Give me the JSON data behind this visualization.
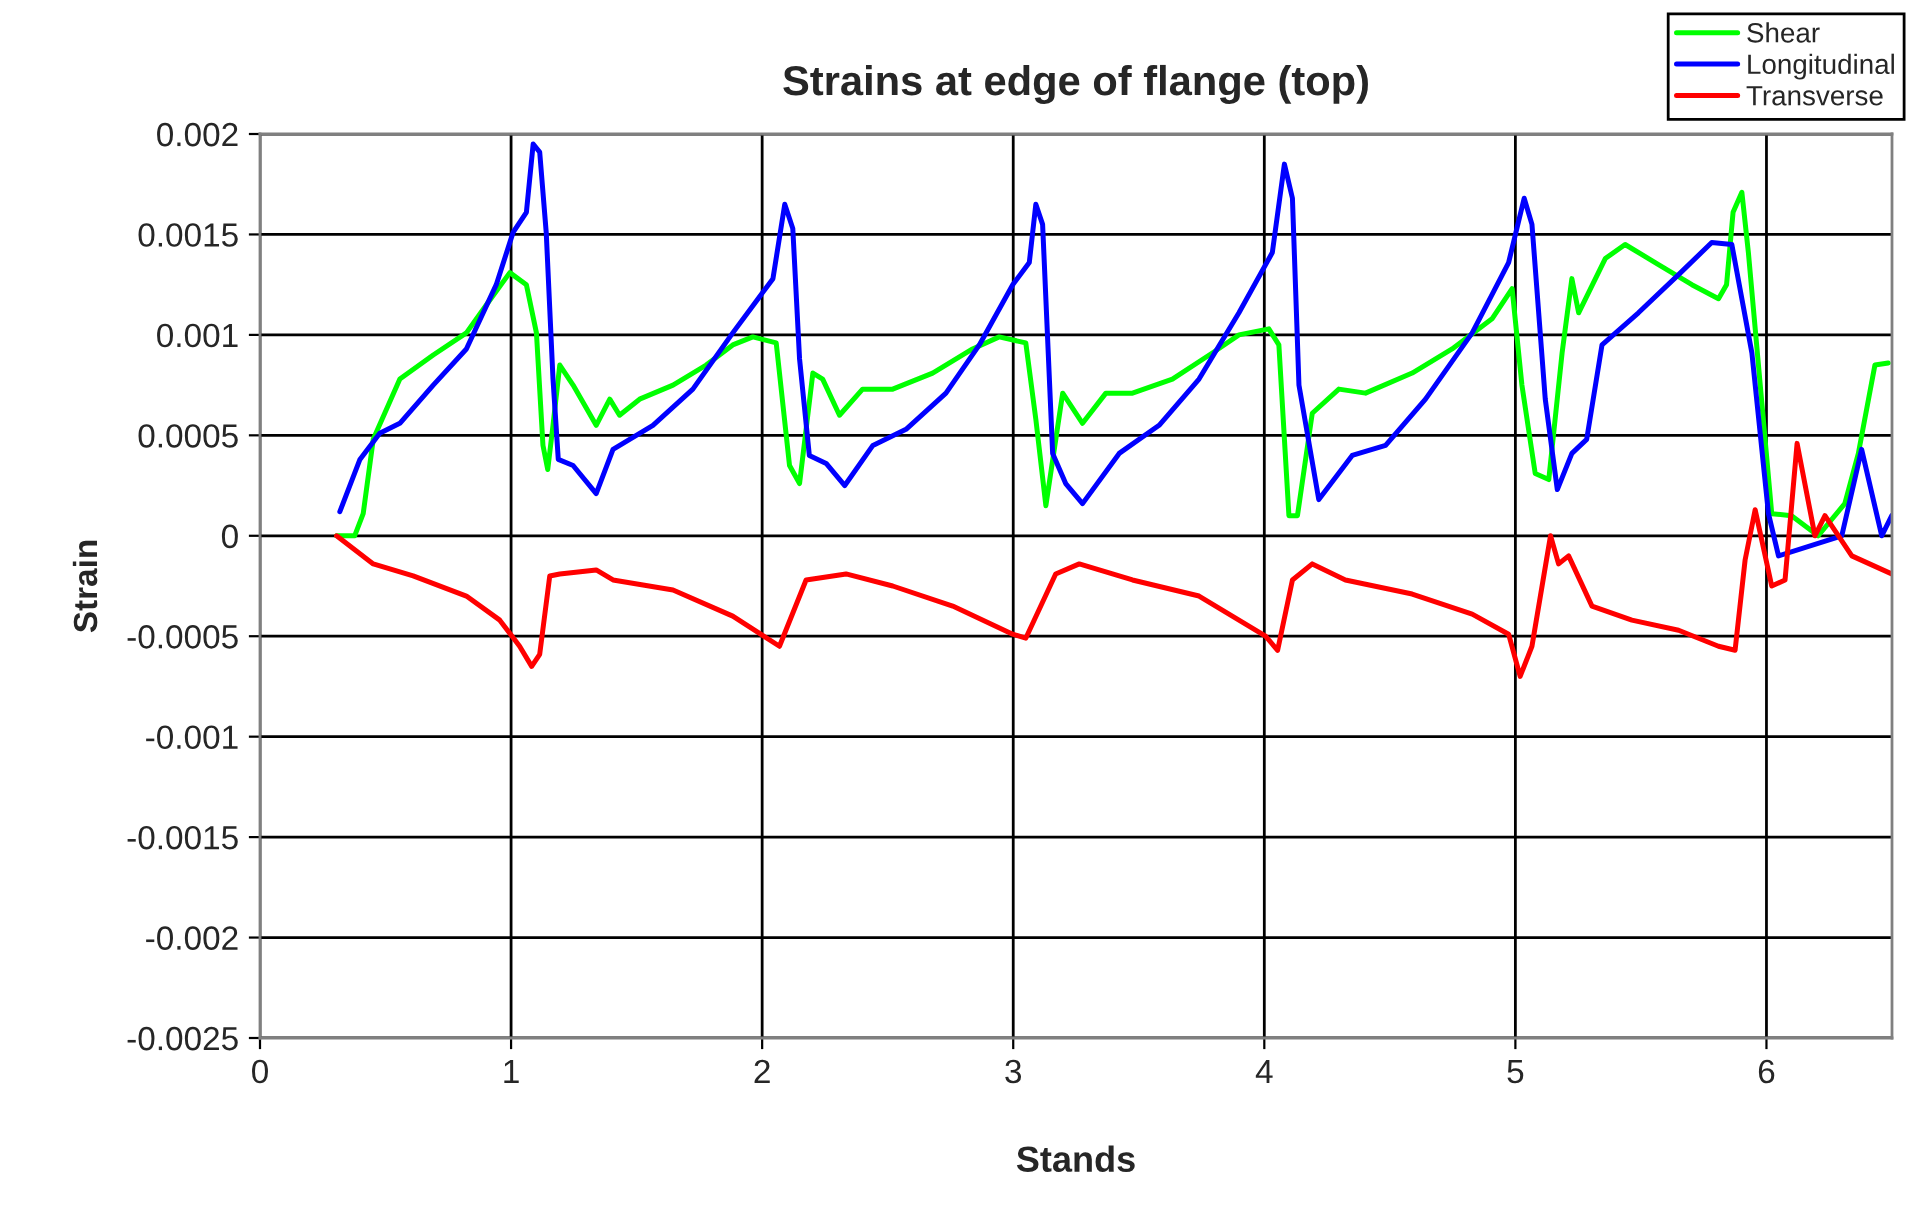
{
  "chart_data": {
    "type": "line",
    "title": "Strains at edge of flange (top)",
    "xlabel": "Stands",
    "ylabel": "Strain",
    "xlim": [
      0,
      6.5
    ],
    "xticks": [
      0,
      1,
      2,
      3,
      4,
      5,
      6
    ],
    "ylim": [
      -0.0025,
      0.002
    ],
    "yticks": [
      -0.0025,
      -0.002,
      -0.0015,
      -0.001,
      -0.0005,
      0,
      0.0005,
      0.001,
      0.0015,
      0.002
    ],
    "grid": true,
    "legend": "top right",
    "marker": "none",
    "line_style": "solid",
    "series": [
      {
        "name": "Shear",
        "color": "#00ff00",
        "x": [
          0.305,
          0.377,
          0.411,
          0.451,
          0.557,
          0.69,
          0.822,
          0.902,
          0.995,
          1.061,
          1.101,
          1.127,
          1.146,
          1.167,
          1.194,
          1.247,
          1.339,
          1.393,
          1.432,
          1.512,
          1.645,
          1.777,
          1.883,
          1.963,
          2.056,
          2.109,
          2.149,
          2.202,
          2.241,
          2.308,
          2.4,
          2.52,
          2.679,
          2.838,
          2.944,
          3.05,
          3.09,
          3.13,
          3.197,
          3.276,
          3.369,
          3.475,
          3.634,
          3.793,
          3.899,
          4.018,
          4.058,
          4.098,
          4.132,
          4.191,
          4.297,
          4.403,
          4.589,
          4.748,
          4.907,
          4.987,
          5.026,
          5.079,
          5.133,
          5.186,
          5.225,
          5.252,
          5.358,
          5.437,
          5.57,
          5.703,
          5.809,
          5.841,
          5.867,
          5.902,
          5.928,
          6.021,
          6.1,
          6.206,
          6.312,
          6.366,
          6.432,
          6.485
        ],
        "values": [
          0.0,
          0.0,
          0.00011,
          0.00048,
          0.00078,
          0.0009,
          0.00101,
          0.00115,
          0.00131,
          0.00125,
          0.00101,
          0.00045,
          0.00033,
          0.00055,
          0.00085,
          0.00075,
          0.00055,
          0.00068,
          0.0006,
          0.00068,
          0.00075,
          0.00085,
          0.00095,
          0.00099,
          0.00096,
          0.00035,
          0.00026,
          0.00081,
          0.00078,
          0.0006,
          0.00073,
          0.00073,
          0.00081,
          0.00093,
          0.00099,
          0.00096,
          0.00058,
          0.00015,
          0.00071,
          0.00056,
          0.00071,
          0.00071,
          0.00078,
          0.00091,
          0.001,
          0.00103,
          0.00095,
          0.0001,
          0.0001,
          0.00061,
          0.00073,
          0.00071,
          0.00081,
          0.00093,
          0.00108,
          0.00123,
          0.00075,
          0.00031,
          0.00028,
          0.00091,
          0.00128,
          0.00111,
          0.00138,
          0.00145,
          0.00135,
          0.00125,
          0.00118,
          0.00125,
          0.00161,
          0.00171,
          0.00141,
          0.00011,
          0.0001,
          0.0,
          0.00016,
          0.00041,
          0.00085,
          0.00086
        ]
      },
      {
        "name": "Longitudinal",
        "color": "#0000ff",
        "x": [
          0.318,
          0.398,
          0.477,
          0.557,
          0.69,
          0.822,
          0.941,
          1.008,
          1.061,
          1.088,
          1.114,
          1.14,
          1.167,
          1.188,
          1.247,
          1.339,
          1.406,
          1.565,
          1.724,
          1.883,
          2.043,
          2.09,
          2.122,
          2.149,
          2.188,
          2.255,
          2.329,
          2.441,
          2.573,
          2.732,
          2.865,
          2.998,
          3.064,
          3.09,
          3.117,
          3.157,
          3.209,
          3.276,
          3.422,
          3.581,
          3.74,
          3.899,
          4.032,
          4.08,
          4.112,
          4.138,
          4.217,
          4.35,
          4.483,
          4.642,
          4.828,
          4.973,
          5.035,
          5.066,
          5.119,
          5.167,
          5.225,
          5.284,
          5.345,
          5.49,
          5.65,
          5.782,
          5.862,
          5.942,
          6.008,
          6.048,
          6.3,
          6.379,
          6.459,
          6.499
        ],
        "values": [
          0.00012,
          0.00038,
          0.00051,
          0.00056,
          0.00075,
          0.00093,
          0.00125,
          0.00151,
          0.00161,
          0.00195,
          0.00191,
          0.00151,
          0.00078,
          0.00038,
          0.00035,
          0.00021,
          0.00043,
          0.00055,
          0.00073,
          0.00101,
          0.00128,
          0.00165,
          0.00153,
          0.00088,
          0.0004,
          0.00036,
          0.00025,
          0.00045,
          0.00053,
          0.00071,
          0.00095,
          0.00125,
          0.00136,
          0.00165,
          0.00155,
          0.00041,
          0.00026,
          0.00016,
          0.00041,
          0.00055,
          0.00078,
          0.00111,
          0.00141,
          0.00185,
          0.00168,
          0.00075,
          0.00018,
          0.0004,
          0.00045,
          0.00068,
          0.00101,
          0.00136,
          0.00168,
          0.00155,
          0.00068,
          0.00023,
          0.00041,
          0.00048,
          0.00095,
          0.00111,
          0.0013,
          0.00146,
          0.00145,
          0.00091,
          0.00011,
          -0.0001,
          0.0,
          0.00043,
          0.0,
          0.0001
        ]
      },
      {
        "name": "Transverse",
        "color": "#ff0000",
        "x": [
          0.305,
          0.451,
          0.61,
          0.822,
          0.955,
          1.034,
          1.082,
          1.114,
          1.154,
          1.194,
          1.339,
          1.406,
          1.645,
          1.883,
          2.069,
          2.175,
          2.334,
          2.52,
          2.759,
          2.998,
          3.05,
          3.169,
          3.263,
          3.475,
          3.74,
          4.005,
          4.053,
          4.112,
          4.191,
          4.323,
          4.589,
          4.828,
          4.973,
          5.019,
          5.066,
          5.14,
          5.172,
          5.212,
          5.305,
          5.464,
          5.65,
          5.809,
          5.875,
          5.915,
          5.955,
          6.021,
          6.074,
          6.122,
          6.193,
          6.233,
          6.34,
          6.499
        ],
        "values": [
          0.0,
          -0.00014,
          -0.0002,
          -0.0003,
          -0.00042,
          -0.00055,
          -0.00065,
          -0.00059,
          -0.0002,
          -0.00019,
          -0.00017,
          -0.00022,
          -0.00027,
          -0.0004,
          -0.00055,
          -0.00022,
          -0.00019,
          -0.00025,
          -0.00035,
          -0.00049,
          -0.00051,
          -0.00019,
          -0.00014,
          -0.00022,
          -0.0003,
          -0.0005,
          -0.00057,
          -0.00022,
          -0.00014,
          -0.00022,
          -0.00029,
          -0.00039,
          -0.00049,
          -0.0007,
          -0.00055,
          0.0,
          -0.00014,
          -0.0001,
          -0.00035,
          -0.00042,
          -0.00047,
          -0.00055,
          -0.00057,
          -0.00012,
          0.00013,
          -0.00025,
          -0.00022,
          0.00046,
          0.0,
          0.0001,
          -0.0001,
          -0.00019
        ]
      }
    ]
  }
}
